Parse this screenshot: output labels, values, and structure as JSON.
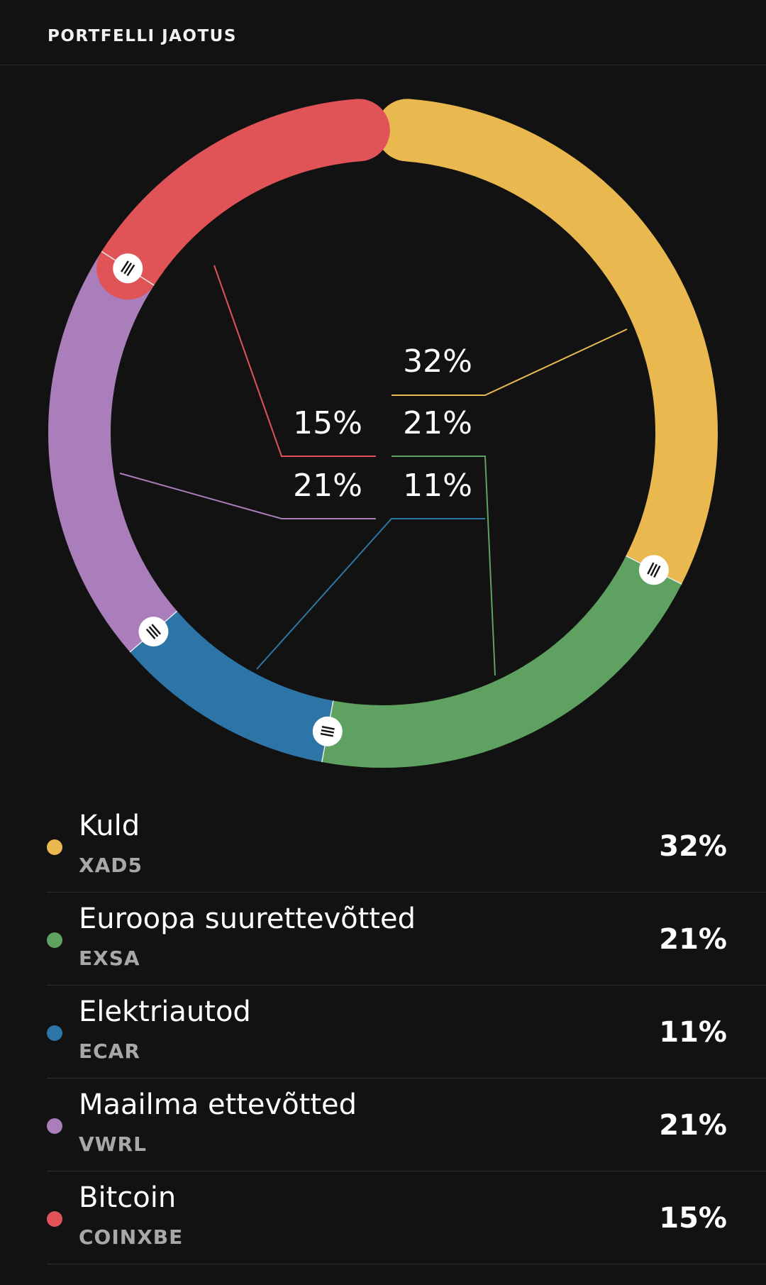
{
  "header": {
    "title": "PORTFELLI JAOTUS"
  },
  "chart_data": {
    "type": "pie",
    "style": "donut",
    "gap_at_top": true,
    "slices": [
      {
        "name": "Kuld",
        "ticker": "XAD5",
        "value": 32,
        "label": "32%",
        "color": "#e9b94f"
      },
      {
        "name": "Euroopa suurettevõtted",
        "ticker": "EXSA",
        "value": 21,
        "label": "21%",
        "color": "#5ea161"
      },
      {
        "name": "Elektriautod",
        "ticker": "ECAR",
        "value": 11,
        "label": "11%",
        "color": "#2e75a7"
      },
      {
        "name": "Maailma ettevõtted",
        "ticker": "VWRL",
        "value": 21,
        "label": "21%",
        "color": "#a97ebb"
      },
      {
        "name": "Bitcoin",
        "ticker": "COINXBE",
        "value": 15,
        "label": "15%",
        "color": "#e05357"
      }
    ]
  },
  "legend": {
    "items": [
      {
        "name": "Kuld",
        "ticker": "XAD5",
        "percent": "32%",
        "color": "#e9b94f"
      },
      {
        "name": "Euroopa suurettevõtted",
        "ticker": "EXSA",
        "percent": "21%",
        "color": "#5ea161"
      },
      {
        "name": "Elektriautod",
        "ticker": "ECAR",
        "percent": "11%",
        "color": "#2e75a7"
      },
      {
        "name": "Maailma ettevõtted",
        "ticker": "VWRL",
        "percent": "21%",
        "color": "#a97ebb"
      },
      {
        "name": "Bitcoin",
        "ticker": "COINXBE",
        "percent": "15%",
        "color": "#e05357"
      }
    ]
  },
  "handles": {
    "icon": "drag-handle-icon"
  }
}
